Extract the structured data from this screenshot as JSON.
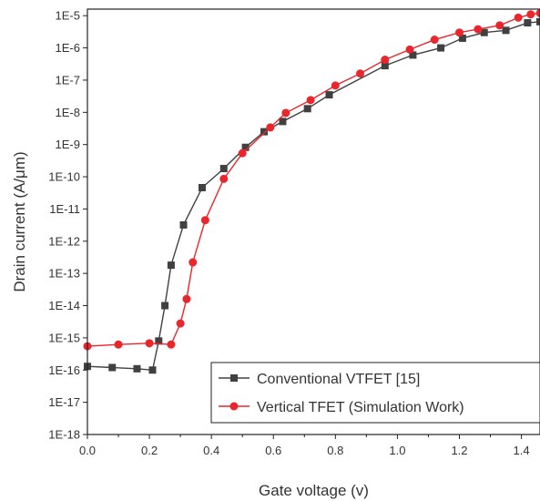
{
  "chart_data": {
    "type": "line",
    "xlabel": "Gate voltage (v)",
    "ylabel": "Drain current (A/μm)",
    "x_ticks": [
      "0.0",
      "0.2",
      "0.4",
      "0.6",
      "0.8",
      "1.0",
      "1.2",
      "1.4"
    ],
    "x_tick_values": [
      0.0,
      0.2,
      0.4,
      0.6,
      0.8,
      1.0,
      1.2,
      1.4
    ],
    "y_ticks": [
      "1E-18",
      "1E-17",
      "1E-16",
      "1E-15",
      "1E-14",
      "1E-13",
      "1E-12",
      "1E-11",
      "1E-10",
      "1E-9",
      "1E-8",
      "1E-7",
      "1E-6",
      "1E-5"
    ],
    "y_tick_values": [
      1e-18,
      1e-17,
      1e-16,
      1e-15,
      1e-14,
      1e-13,
      1e-12,
      1e-11,
      1e-10,
      1e-09,
      1e-08,
      1e-07,
      1e-06,
      1e-05
    ],
    "xlim": [
      0.0,
      1.46
    ],
    "ylim": [
      1e-18,
      1.6e-05
    ],
    "y_scale": "log",
    "legend_position": "bottom-right",
    "series": [
      {
        "name": "Conventional VTFET [15]",
        "color": "#404040",
        "marker": "square",
        "x": [
          0.0,
          0.08,
          0.16,
          0.21,
          0.23,
          0.25,
          0.27,
          0.31,
          0.37,
          0.44,
          0.51,
          0.57,
          0.63,
          0.71,
          0.78,
          0.96,
          1.05,
          1.14,
          1.21,
          1.28,
          1.35,
          1.42,
          1.46
        ],
        "y": [
          1.3e-16,
          1.2e-16,
          1.1e-16,
          1e-16,
          8e-16,
          1e-14,
          1.8e-13,
          3.2e-12,
          4.6e-11,
          1.8e-10,
          8.2e-10,
          2.5e-09,
          5.2e-09,
          1.3e-08,
          3.5e-08,
          2.8e-07,
          6e-07,
          1e-06,
          2e-06,
          3e-06,
          3.5e-06,
          6e-06,
          6.5e-06
        ]
      },
      {
        "name": "Vertical TFET (Simulation Work)",
        "color": "#e8262c",
        "marker": "circle",
        "x": [
          0.0,
          0.1,
          0.2,
          0.27,
          0.3,
          0.32,
          0.34,
          0.38,
          0.44,
          0.5,
          0.59,
          0.64,
          0.72,
          0.8,
          0.88,
          0.96,
          1.04,
          1.12,
          1.2,
          1.26,
          1.33,
          1.39,
          1.43,
          1.46
        ],
        "y": [
          5.5e-16,
          6.2e-16,
          6.8e-16,
          6.2e-16,
          2.8e-15,
          1.6e-14,
          2.2e-13,
          4.5e-12,
          8.6e-11,
          5.4e-10,
          3.4e-09,
          9.6e-09,
          2.4e-08,
          6.8e-08,
          1.6e-07,
          4.3e-07,
          8.9e-07,
          1.8e-06,
          3e-06,
          3.8e-06,
          5e-06,
          8.7e-06,
          1.1e-05,
          1.2e-05
        ]
      }
    ]
  }
}
